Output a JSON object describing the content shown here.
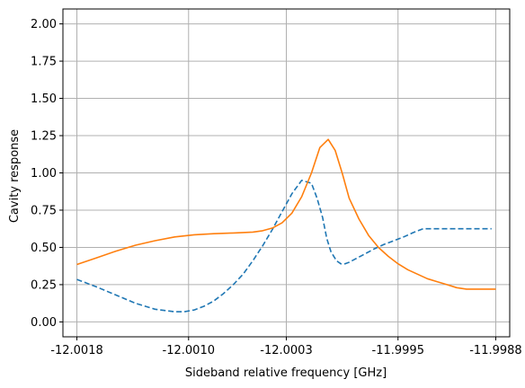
{
  "chart_data": {
    "type": "line",
    "title": "",
    "xlabel": "Sideband relative frequency [GHz]",
    "ylabel": "Cavity response",
    "xlim": [
      -12.0019,
      -11.9987
    ],
    "ylim": [
      -0.1,
      2.1
    ],
    "grid": true,
    "x_ticks": [
      -12.0018,
      -12.001,
      -12.0003,
      -11.9995,
      -11.9988
    ],
    "x_tick_labels": [
      "-12.0018",
      "-12.0010",
      "-12.0003",
      "-11.9995",
      "-11.9988"
    ],
    "y_ticks": [
      0.0,
      0.25,
      0.5,
      0.75,
      1.0,
      1.25,
      1.5,
      1.75,
      2.0
    ],
    "y_tick_labels": [
      "0.00",
      "0.25",
      "0.50",
      "0.75",
      "1.00",
      "1.25",
      "1.50",
      "1.75",
      "2.00"
    ],
    "series": [
      {
        "color": "#1f77b4",
        "style": "dashed",
        "x": [
          -12.0018,
          -12.00166,
          -12.00152,
          -12.00138,
          -12.00124,
          -12.0011,
          -12.00103,
          -12.00096,
          -12.00089,
          -12.00082,
          -12.00075,
          -12.00068,
          -12.00061,
          -12.00054,
          -12.00047,
          -12.0004,
          -12.00033,
          -12.00026,
          -12.00019,
          -12.00012,
          -12.00008,
          -12.00004,
          -12.00001,
          -11.99998,
          -11.99994,
          -11.99991,
          -11.99988,
          -11.99985,
          -11.99981,
          -11.99977,
          -11.99973,
          -11.99967,
          -11.9996,
          -11.99953,
          -11.99946,
          -11.99939,
          -11.99932,
          -11.99925,
          -11.99918,
          -11.99911,
          -11.99904,
          -11.99897,
          -11.9989,
          -11.99883
        ],
        "y": [
          0.285,
          0.235,
          0.18,
          0.125,
          0.085,
          0.068,
          0.068,
          0.08,
          0.105,
          0.14,
          0.19,
          0.25,
          0.32,
          0.41,
          0.51,
          0.62,
          0.74,
          0.86,
          0.95,
          0.93,
          0.83,
          0.7,
          0.56,
          0.47,
          0.41,
          0.39,
          0.39,
          0.4,
          0.42,
          0.44,
          0.46,
          0.49,
          0.52,
          0.545,
          0.57,
          0.6,
          0.625,
          0.625,
          0.625,
          0.625,
          0.625,
          0.625,
          0.625,
          0.625
        ]
      },
      {
        "color": "#ff7f0e",
        "style": "solid",
        "x": [
          -12.0018,
          -12.00166,
          -12.00152,
          -12.00138,
          -12.00124,
          -12.0011,
          -12.00096,
          -12.00082,
          -12.00068,
          -12.00054,
          -12.00047,
          -12.0004,
          -12.00033,
          -12.00026,
          -12.00019,
          -12.00012,
          -12.00006,
          -12.0,
          -11.99995,
          -11.9999,
          -11.99985,
          -11.99978,
          -11.99971,
          -11.99964,
          -11.99957,
          -11.9995,
          -11.99943,
          -11.99936,
          -11.99929,
          -11.99922,
          -11.99915,
          -11.99908,
          -11.99901,
          -11.99894,
          -11.99887,
          -11.9988
        ],
        "y": [
          0.385,
          0.43,
          0.475,
          0.515,
          0.545,
          0.57,
          0.585,
          0.592,
          0.597,
          0.603,
          0.612,
          0.63,
          0.665,
          0.73,
          0.84,
          1.0,
          1.17,
          1.225,
          1.15,
          1.0,
          0.83,
          0.69,
          0.58,
          0.5,
          0.44,
          0.39,
          0.35,
          0.32,
          0.29,
          0.27,
          0.25,
          0.23,
          0.22,
          0.22,
          0.22,
          0.22
        ]
      }
    ]
  }
}
